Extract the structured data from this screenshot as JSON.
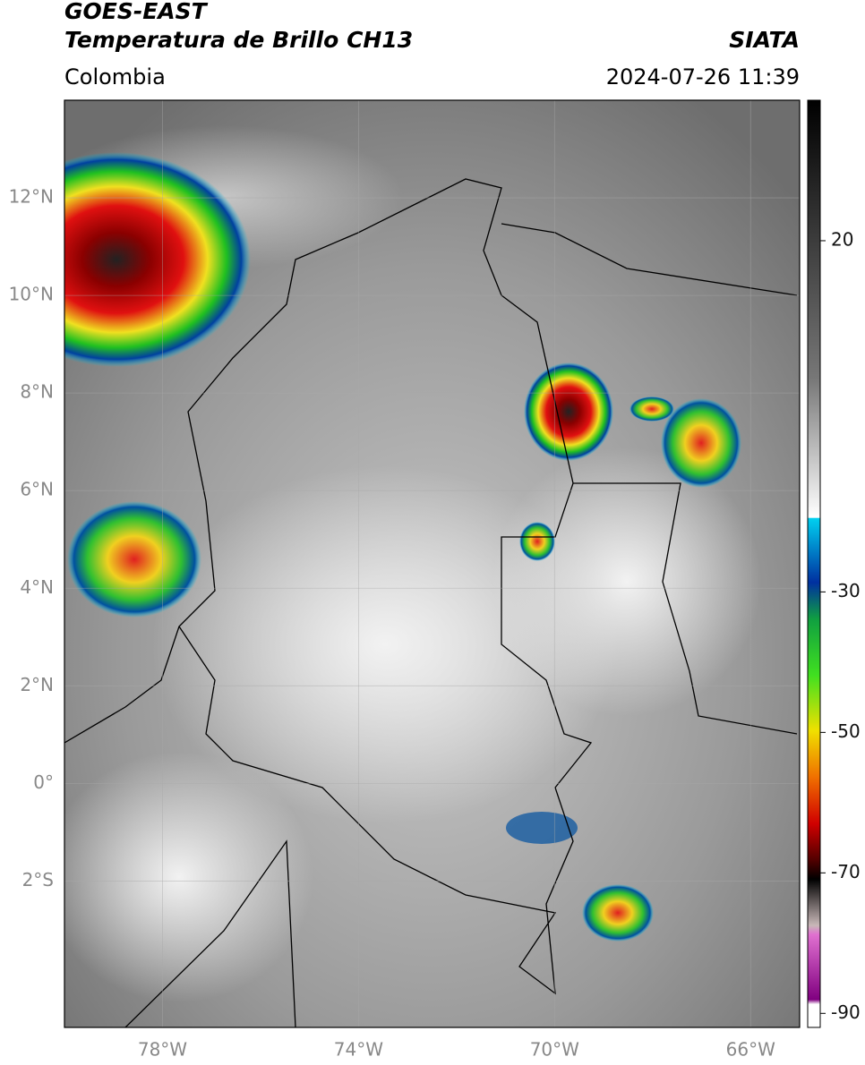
{
  "header": {
    "title": "GOES-EAST",
    "subtitle": "Temperatura de Brillo CH13",
    "source": "SIATA",
    "region": "Colombia",
    "timestamp": "2024-07-26 11:39"
  },
  "map": {
    "lon_range": [
      -80,
      -65
    ],
    "lat_range": [
      -5,
      14
    ],
    "lat_ticks": [
      {
        "value": 12,
        "label": "12°N"
      },
      {
        "value": 10,
        "label": "10°N"
      },
      {
        "value": 8,
        "label": "8°N"
      },
      {
        "value": 6,
        "label": "6°N"
      },
      {
        "value": 4,
        "label": "4°N"
      },
      {
        "value": 2,
        "label": "2°N"
      },
      {
        "value": 0,
        "label": "0°"
      },
      {
        "value": -2,
        "label": "2°S"
      }
    ],
    "lon_ticks": [
      {
        "value": -78,
        "label": "78°W"
      },
      {
        "value": -74,
        "label": "74°W"
      },
      {
        "value": -70,
        "label": "70°W"
      },
      {
        "value": -66,
        "label": "66°W"
      }
    ]
  },
  "colorbar": {
    "range": [
      -92,
      40
    ],
    "ticks": [
      20,
      -30,
      -50,
      -70,
      -90
    ]
  }
}
